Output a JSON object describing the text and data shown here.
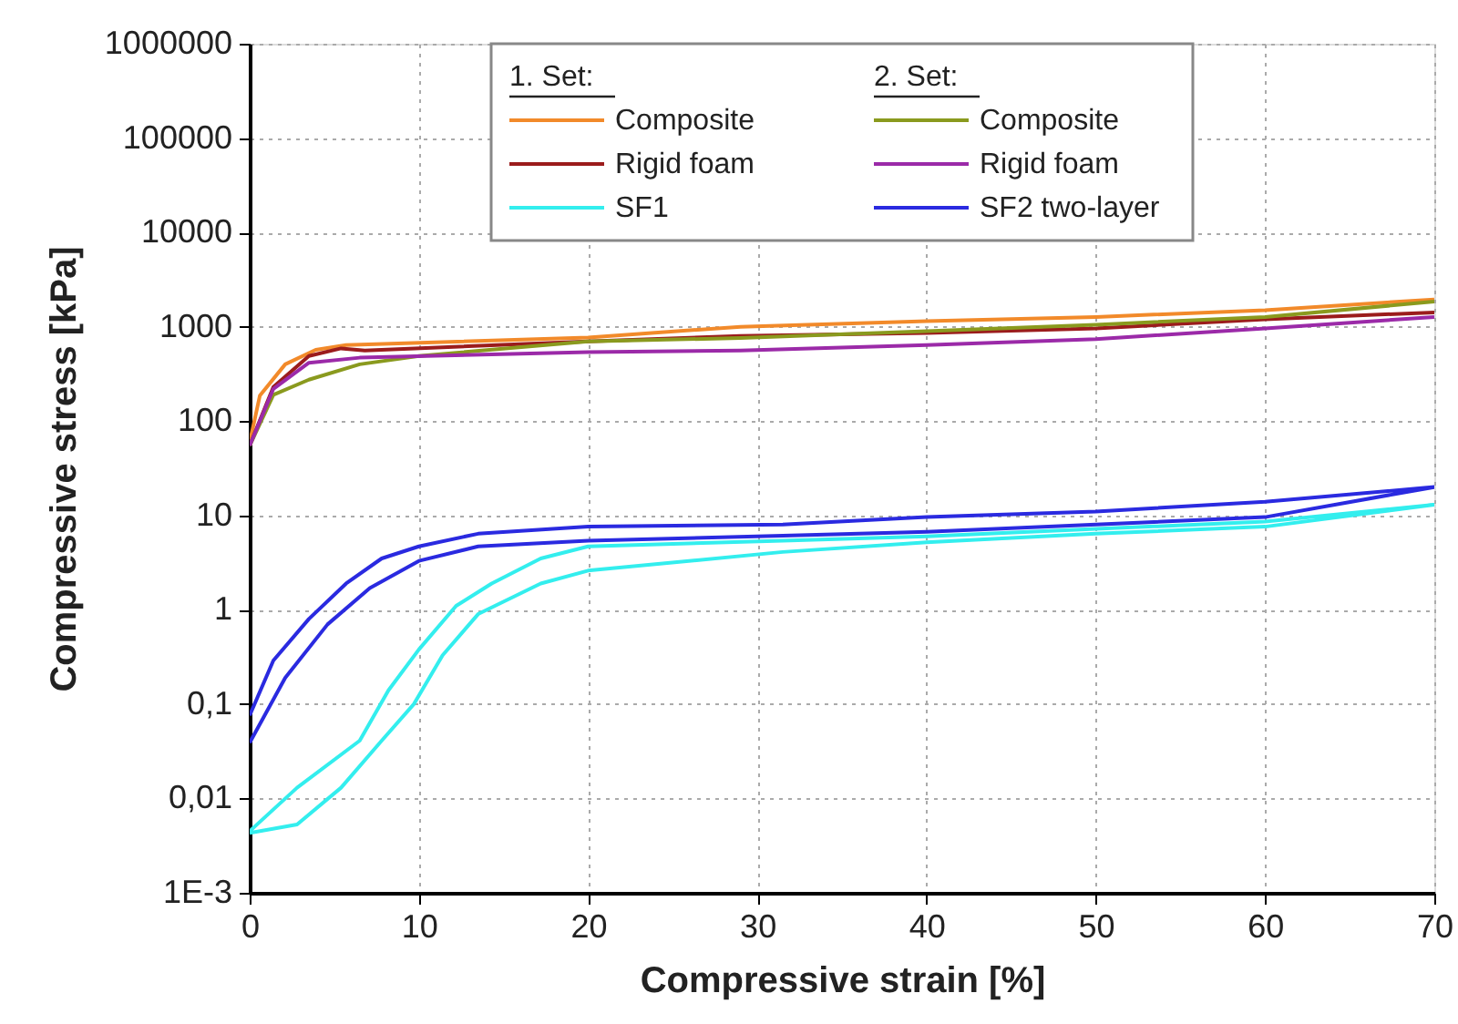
{
  "chart_data": {
    "type": "line",
    "xlabel": "Compressive strain [%]",
    "ylabel": "Compressive stress [kPa]",
    "log": "y",
    "grid": true,
    "legend": "top",
    "annotations": [
      "1. Set:",
      "2. Set:"
    ],
    "xlim": [
      0,
      70
    ],
    "xticks": [
      0,
      10,
      20,
      30,
      40,
      50,
      60,
      70
    ],
    "ylim": [
      0.001,
      1000000
    ],
    "yticks": [
      {
        "value": 0.001,
        "label": "1E-3"
      },
      {
        "value": 0.01,
        "label": "0,01"
      },
      {
        "value": 0.1,
        "label": "0,1"
      },
      1,
      10,
      100,
      1000,
      10000,
      100000,
      1000000
    ],
    "series": [
      {
        "name": "Composite",
        "color": "#f28a2a",
        "x": [
          0,
          0.6,
          2.1,
          3.9,
          5.7,
          20,
          29,
          40,
          50,
          60,
          70
        ],
        "values": [
          59,
          186,
          400,
          570,
          640,
          770,
          1000,
          1150,
          1270,
          1500,
          1950
        ]
      },
      {
        "name": "Rigid foam",
        "color": "#9b1c1c",
        "x": [
          0,
          1.4,
          3.5,
          5.4,
          6.8,
          20,
          29,
          40,
          50,
          60,
          70
        ],
        "values": [
          55,
          230,
          490,
          590,
          560,
          700,
          800,
          860,
          960,
          1200,
          1420
        ]
      },
      {
        "name": "SF1",
        "color": "#33eeee",
        "x": [
          0,
          2.8,
          6.5,
          8.2,
          10,
          12.2,
          14.3,
          17.2,
          20,
          31.5,
          40,
          50,
          60,
          70,
          60,
          50,
          40,
          31.5,
          20,
          17.2,
          13.5,
          11.4,
          9.7,
          7.8,
          5.4,
          2.8,
          0
        ],
        "values": [
          0.0045,
          0.013,
          0.041,
          0.14,
          0.38,
          1.1,
          1.9,
          3.5,
          4.7,
          5.4,
          6.0,
          7.2,
          8.6,
          13,
          7.6,
          6.4,
          5.2,
          4.1,
          2.6,
          1.9,
          0.9,
          0.33,
          0.1,
          0.041,
          0.013,
          0.0053,
          0.0043
        ]
      },
      {
        "name": "Composite",
        "color": "#8a9a1e",
        "x": [
          0,
          1.4,
          3.5,
          6.5,
          10,
          20,
          29,
          40,
          50,
          60,
          70
        ],
        "values": [
          55,
          190,
          275,
          400,
          490,
          700,
          760,
          900,
          1050,
          1270,
          1850
        ]
      },
      {
        "name": "Rigid foam",
        "color": "#9b2aa8",
        "x": [
          0,
          1.4,
          3.5,
          6.5,
          20,
          29,
          40,
          50,
          60,
          70
        ],
        "values": [
          55,
          220,
          415,
          470,
          540,
          560,
          640,
          740,
          960,
          1270
        ]
      },
      {
        "name": "SF2 two-layer",
        "color": "#2a2ae0",
        "x": [
          0,
          1.4,
          3.5,
          5.7,
          7.8,
          10,
          13.5,
          20,
          31.5,
          40,
          50,
          60,
          70,
          60,
          50,
          40,
          31.5,
          20,
          13.5,
          10,
          7.1,
          4.6,
          2.1,
          0
        ],
        "values": [
          0.076,
          0.29,
          0.8,
          1.9,
          3.5,
          4.7,
          6.4,
          7.6,
          8.0,
          9.6,
          11,
          14,
          20,
          9.6,
          8,
          6.7,
          6.1,
          5.4,
          4.7,
          3.3,
          1.7,
          0.7,
          0.19,
          0.039
        ]
      }
    ]
  }
}
